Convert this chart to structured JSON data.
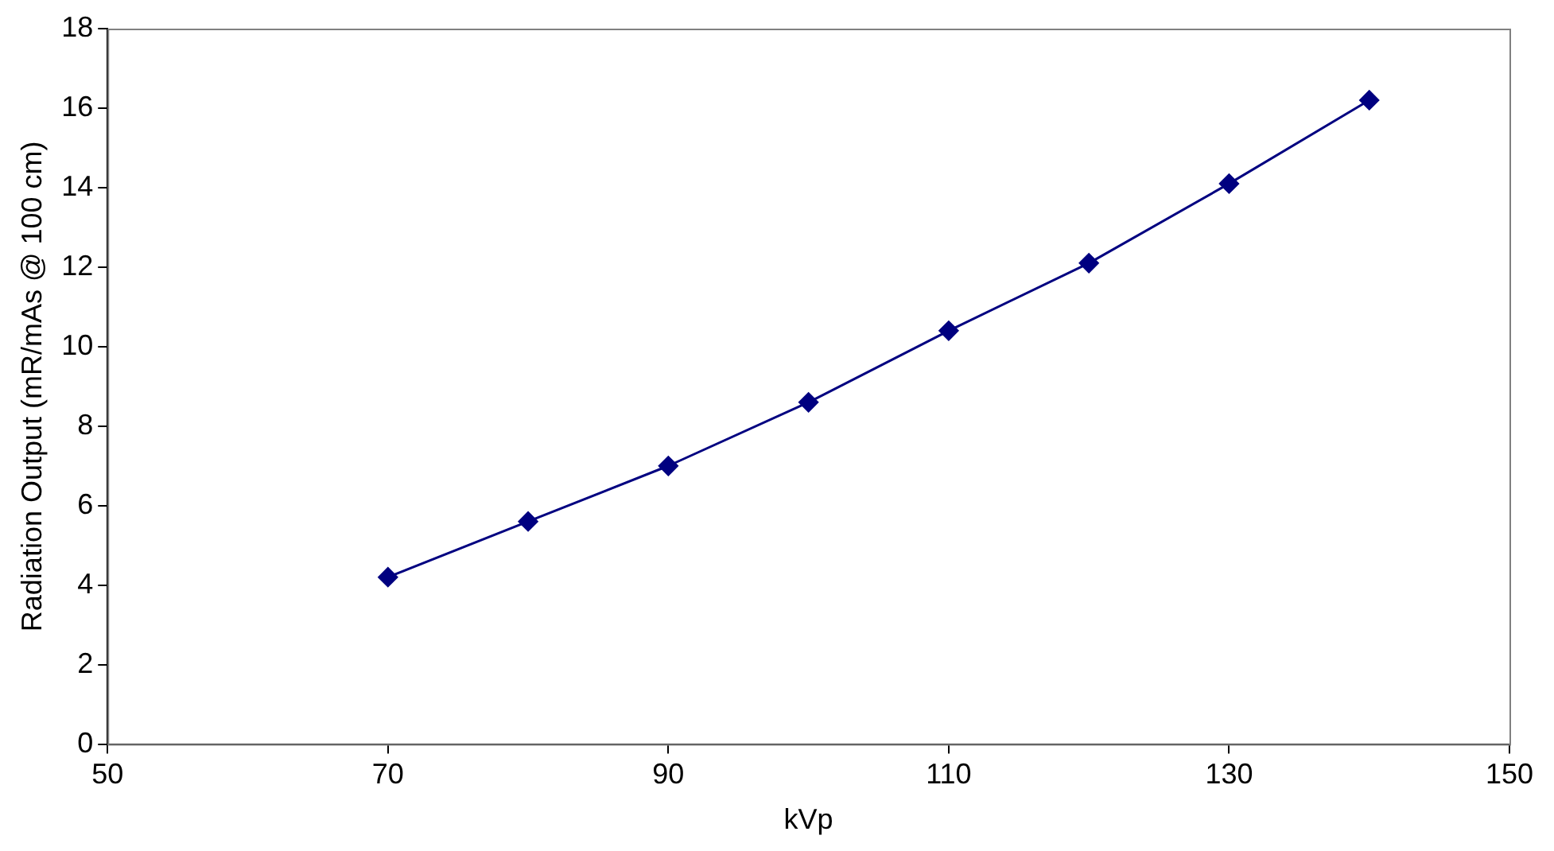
{
  "chart_data": {
    "type": "line",
    "xlabel": "kVp",
    "ylabel": "Radiation Output (mR/mAs @ 100 cm)",
    "x": [
      70,
      80,
      90,
      100,
      110,
      120,
      130,
      140
    ],
    "series": [
      {
        "color": "#000080",
        "values": [
          4.2,
          5.6,
          7.0,
          8.6,
          10.4,
          12.1,
          14.1,
          16.2
        ]
      }
    ],
    "xlim": [
      50,
      150
    ],
    "xticks": [
      50,
      70,
      90,
      110,
      130,
      150
    ],
    "ylim": [
      0,
      18
    ],
    "yticks": [
      0,
      2,
      4,
      6,
      8,
      10,
      12,
      14,
      16,
      18
    ],
    "grid": false,
    "legend": false,
    "marker": "diamond",
    "line_style": "solid"
  }
}
